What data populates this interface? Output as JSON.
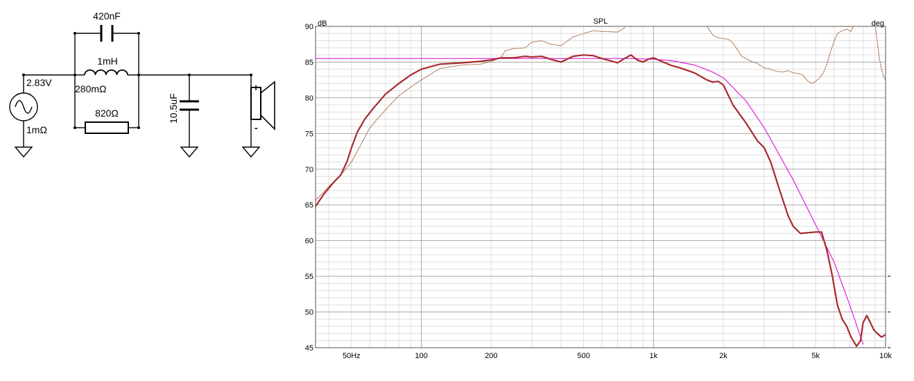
{
  "schematic": {
    "source_voltage": "2.83V",
    "source_resistance": "1mΩ",
    "capacitor_parallel": "420nF",
    "inductor": "1mH",
    "inductor_resistance": "280mΩ",
    "resistor": "820Ω",
    "capacitor_shunt": "10.5uF",
    "speaker_plus": "+",
    "speaker_minus": "-"
  },
  "chart_data": {
    "type": "line",
    "title": "SPL",
    "ylabel_left": "dB",
    "ylabel_right": "deg",
    "x_scale": "log",
    "xlim": [
      35,
      10000
    ],
    "ylim": [
      45,
      90
    ],
    "grid": true,
    "y_ticks": [
      45,
      50,
      55,
      60,
      65,
      70,
      75,
      80,
      85,
      90
    ],
    "x_ticks": [
      {
        "value": 50,
        "label": "50Hz"
      },
      {
        "value": 100,
        "label": "100"
      },
      {
        "value": 200,
        "label": "200"
      },
      {
        "value": 500,
        "label": "500"
      },
      {
        "value": 1000,
        "label": "1k"
      },
      {
        "value": 2000,
        "label": "2k"
      },
      {
        "value": 5000,
        "label": "5k"
      },
      {
        "value": 10000,
        "label": "10k"
      }
    ],
    "colors": {
      "spl": "#a8282e",
      "target": "#e020e0",
      "phase": "#a0603a",
      "grid_major": "#a8a8a8",
      "grid_minor": "#dedede"
    },
    "series": [
      {
        "key": "target",
        "x": [
          35,
          200,
          800,
          1000,
          1200,
          1500,
          1800,
          2000,
          2500,
          3000,
          4000,
          5000,
          6000,
          7000,
          8000
        ],
        "y": [
          85.5,
          85.5,
          85.5,
          85.4,
          85.2,
          84.6,
          83.6,
          82.8,
          79.6,
          75.8,
          68.5,
          62.2,
          57.0,
          51.0,
          45.5
        ]
      },
      {
        "key": "spl",
        "x": [
          35,
          38,
          42,
          45,
          48,
          50,
          53,
          57,
          62,
          70,
          80,
          90,
          100,
          120,
          150,
          180,
          200,
          220,
          250,
          280,
          300,
          330,
          360,
          400,
          450,
          500,
          550,
          600,
          650,
          700,
          750,
          800,
          850,
          900,
          950,
          1000,
          1100,
          1200,
          1300,
          1500,
          1700,
          1800,
          1900,
          2000,
          2200,
          2500,
          2800,
          3000,
          3200,
          3500,
          3800,
          4000,
          4300,
          4600,
          5000,
          5300,
          5600,
          5900,
          6200,
          6500,
          6800,
          7100,
          7500,
          7800,
          8000,
          8300,
          8600,
          8900,
          9200,
          9600,
          10000
        ],
        "y": [
          64.8,
          66.5,
          68.2,
          69.2,
          71.2,
          73.0,
          75.2,
          77.0,
          78.5,
          80.5,
          82.0,
          83.2,
          84.0,
          84.7,
          84.9,
          85.1,
          85.3,
          85.6,
          85.6,
          85.8,
          85.7,
          85.8,
          85.4,
          85.0,
          85.8,
          86.0,
          85.9,
          85.5,
          85.2,
          84.9,
          85.5,
          86.0,
          85.3,
          85.0,
          85.4,
          85.6,
          85.0,
          84.5,
          84.2,
          83.5,
          82.5,
          82.2,
          82.3,
          81.8,
          79.0,
          76.5,
          74.0,
          73.0,
          71.0,
          67.0,
          63.5,
          62.0,
          61.0,
          61.1,
          61.2,
          61.2,
          58.5,
          55.0,
          51.0,
          49.0,
          48.0,
          46.5,
          45.2,
          46.0,
          48.5,
          49.5,
          48.5,
          47.5,
          47.0,
          46.5,
          46.8
        ]
      },
      {
        "key": "phase",
        "x": [
          35,
          40,
          45,
          50,
          55,
          60,
          70,
          80,
          90,
          100,
          120,
          150,
          180,
          200,
          220,
          230,
          250,
          280,
          300,
          330,
          360,
          400,
          450,
          500,
          550,
          600,
          700,
          750,
          760
        ],
        "y": [
          65.6,
          67.6,
          69.2,
          71.0,
          73.5,
          75.8,
          78.3,
          80.3,
          81.5,
          82.5,
          84.1,
          84.6,
          84.7,
          85.1,
          85.6,
          86.6,
          86.9,
          87.0,
          87.8,
          88.0,
          87.5,
          87.3,
          88.5,
          89.0,
          89.4,
          89.3,
          89.2,
          89.8,
          91.0
        ]
      },
      {
        "key": "phase",
        "x": [
          1600,
          1700,
          1800,
          1900,
          2000,
          2100,
          2200,
          2400,
          2600,
          2800,
          3000,
          3200,
          3400,
          3600,
          3800,
          4000,
          4200,
          4400,
          4600,
          4800,
          5000,
          5200,
          5400,
          5600,
          5800,
          6000,
          6200,
          6500,
          6800,
          7100,
          7300
        ],
        "y": [
          90.5,
          90.0,
          88.8,
          88.4,
          88.3,
          88.2,
          87.7,
          85.8,
          85.2,
          84.8,
          84.2,
          84.0,
          83.7,
          83.6,
          83.8,
          83.5,
          83.4,
          83.2,
          82.4,
          82.0,
          82.3,
          82.8,
          83.5,
          84.8,
          86.5,
          87.9,
          89.0,
          89.4,
          89.6,
          89.3,
          90.2
        ]
      },
      {
        "key": "phase",
        "x": [
          9000,
          9200,
          9400,
          9600,
          9800,
          10000
        ],
        "y": [
          90.5,
          88.0,
          85.5,
          84.0,
          83.0,
          82.5
        ]
      }
    ]
  }
}
